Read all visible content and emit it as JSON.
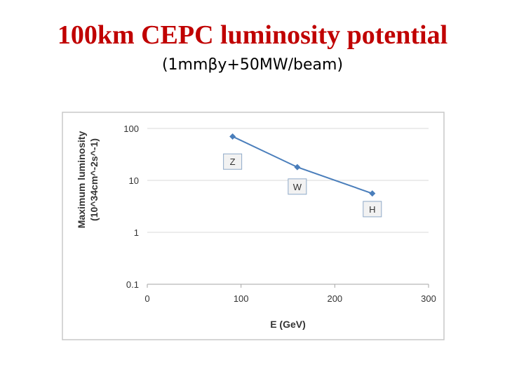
{
  "slide": {
    "title": "100km CEPC luminosity potential",
    "subtitle": "(1mmβy+50MW/beam)"
  },
  "chart_data": {
    "type": "line",
    "xlabel": "E (GeV)",
    "ylabel_lines": [
      "Maximum luminosity",
      "(10^34cm^-2s^-1)"
    ],
    "xlim": [
      0,
      300
    ],
    "ylim": [
      0.1,
      100
    ],
    "yscale": "log",
    "x_ticks": [
      0,
      100,
      200,
      300
    ],
    "x_tick_labels": [
      "0",
      "100",
      "200",
      "300"
    ],
    "y_ticks": [
      0.1,
      1,
      10,
      100
    ],
    "y_tick_labels": [
      "0.1",
      "1",
      "10",
      "100"
    ],
    "grid": "horizontal",
    "legend": "none",
    "series": [
      {
        "x": [
          91,
          160,
          240
        ],
        "y": [
          70,
          18,
          5.6
        ],
        "color": "#4a7ebb",
        "marker": "diamond"
      }
    ],
    "annotations": [
      {
        "text": "Z",
        "x": 91,
        "y": 23
      },
      {
        "text": "W",
        "x": 160,
        "y": 7.6
      },
      {
        "text": "H",
        "x": 240,
        "y": 2.8
      }
    ],
    "box_border_color": "#c8c8c8",
    "grid_color": "#d9d9d9"
  }
}
